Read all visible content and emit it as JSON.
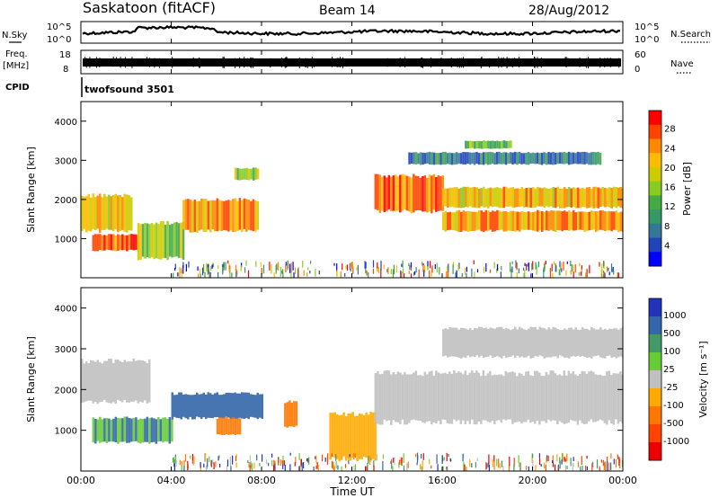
{
  "header": {
    "title": "Saskatoon (fitACF)",
    "beam": "Beam 14",
    "date": "28/Aug/2012"
  },
  "strips": {
    "nsky": {
      "label": "N.Sky",
      "ticks": [
        "10^5",
        "10^0"
      ]
    },
    "nsearch": {
      "label": "N.Search",
      "ticks": [
        "10^5",
        "10^0"
      ]
    },
    "freq": {
      "label_line1": "Freq.",
      "label_line2": "[MHz]",
      "ticks": [
        "18",
        "8"
      ]
    },
    "nave": {
      "label": "Nave",
      "ticks": [
        "60",
        "0"
      ]
    },
    "cpid": {
      "label": "CPID",
      "value": "twofsound 3501"
    }
  },
  "axes": {
    "xlabel": "Time UT",
    "x_ticks": [
      "00:00",
      "04:00",
      "08:00",
      "12:00",
      "16:00",
      "20:00",
      "00:00"
    ],
    "ylabel": "Slant Range [km]",
    "y_ticks": [
      "4000",
      "3000",
      "2000",
      "1000"
    ]
  },
  "colorbars": {
    "power": {
      "label": "Power [dB]",
      "ticks": [
        "28",
        "24",
        "20",
        "16",
        "12",
        "8",
        "4"
      ],
      "colors": [
        "#ff0000",
        "#ff4400",
        "#ff8800",
        "#ffbb00",
        "#cccc00",
        "#88cc22",
        "#44aa44",
        "#339966",
        "#337799",
        "#2244bb",
        "#0000ff"
      ]
    },
    "velocity": {
      "label": "Velocity [m s⁻¹]",
      "ticks": [
        "1000",
        "500",
        "100",
        "25",
        "-25",
        "-100",
        "-500",
        "-1000"
      ],
      "colors": [
        "#2233bb",
        "#3366aa",
        "#449966",
        "#66cc33",
        "#c0c0c0",
        "#ffaa00",
        "#ff7700",
        "#ff4400",
        "#ee0000"
      ]
    }
  },
  "chart_data": {
    "type": "heatmap",
    "x_range_hours_ut": [
      0,
      24
    ],
    "y_range_km": [
      0,
      4500
    ],
    "panels": [
      {
        "name": "power",
        "unit": "dB",
        "scale_range": [
          0,
          32
        ],
        "regions": [
          {
            "t_start": 0.0,
            "t_end": 2.2,
            "range_start_km": 1200,
            "range_end_km": 2100,
            "value": 20
          },
          {
            "t_start": 0.5,
            "t_end": 2.5,
            "range_start_km": 700,
            "range_end_km": 1100,
            "value": 26
          },
          {
            "t_start": 2.5,
            "t_end": 4.5,
            "range_start_km": 500,
            "range_end_km": 1400,
            "value": 18
          },
          {
            "t_start": 4.5,
            "t_end": 7.8,
            "range_start_km": 1200,
            "range_end_km": 2000,
            "value": 24
          },
          {
            "t_start": 6.8,
            "t_end": 7.8,
            "range_start_km": 2500,
            "range_end_km": 2800,
            "value": 18
          },
          {
            "t_start": 13.0,
            "t_end": 16.0,
            "range_start_km": 1700,
            "range_end_km": 2600,
            "value": 26
          },
          {
            "t_start": 16.0,
            "t_end": 24.0,
            "range_start_km": 1800,
            "range_end_km": 2300,
            "value": 22
          },
          {
            "t_start": 16.0,
            "t_end": 24.0,
            "range_start_km": 1200,
            "range_end_km": 1700,
            "value": 24
          },
          {
            "t_start": 14.5,
            "t_end": 23.0,
            "range_start_km": 2900,
            "range_end_km": 3200,
            "value": 8
          },
          {
            "t_start": 17.0,
            "t_end": 19.0,
            "range_start_km": 3300,
            "range_end_km": 3500,
            "value": 14
          }
        ]
      },
      {
        "name": "velocity",
        "unit": "m s-1",
        "scale_range": [
          -1000,
          1000
        ],
        "regions": [
          {
            "t_start": 0.0,
            "t_end": 3.0,
            "range_start_km": 1700,
            "range_end_km": 2700,
            "value": 0
          },
          {
            "t_start": 0.5,
            "t_end": 4.0,
            "range_start_km": 700,
            "range_end_km": 1300,
            "value": 100
          },
          {
            "t_start": 4.0,
            "t_end": 8.0,
            "range_start_km": 1300,
            "range_end_km": 1900,
            "value": 300
          },
          {
            "t_start": 6.0,
            "t_end": 7.0,
            "range_start_km": 900,
            "range_end_km": 1300,
            "value": -150
          },
          {
            "t_start": 9.0,
            "t_end": 9.5,
            "range_start_km": 1100,
            "range_end_km": 1700,
            "value": -200
          },
          {
            "t_start": 11.0,
            "t_end": 13.0,
            "range_start_km": 300,
            "range_end_km": 1400,
            "value": -80
          },
          {
            "t_start": 13.0,
            "t_end": 24.0,
            "range_start_km": 1200,
            "range_end_km": 2400,
            "value": 0
          },
          {
            "t_start": 16.0,
            "t_end": 24.0,
            "range_start_km": 2800,
            "range_end_km": 3500,
            "value": 0
          }
        ]
      }
    ]
  }
}
